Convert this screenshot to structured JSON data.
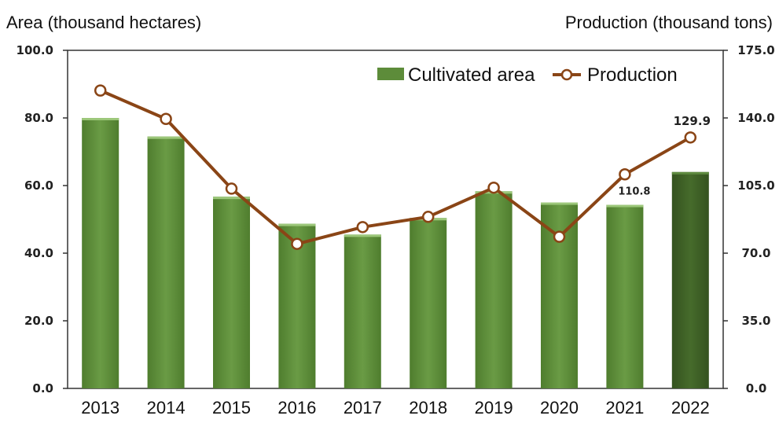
{
  "chart_data": {
    "type": "bar",
    "categories": [
      "2013",
      "2014",
      "2015",
      "2016",
      "2017",
      "2018",
      "2019",
      "2020",
      "2021",
      "2022"
    ],
    "series": [
      {
        "name": "Cultivated area",
        "type": "bar",
        "axis": "left",
        "values": [
          80.0,
          74.5,
          56.7,
          48.7,
          45.5,
          50.4,
          58.3,
          55.0,
          54.3,
          64.0
        ],
        "color": "#5d8c3a",
        "highlight_color": "#3f6027"
      },
      {
        "name": "Production",
        "type": "line",
        "axis": "right",
        "values": [
          154.2,
          139.5,
          103.4,
          74.8,
          83.5,
          88.8,
          103.9,
          78.5,
          110.8,
          129.9
        ],
        "color": "#8a4516"
      }
    ],
    "y_left": {
      "label": "Area (thousand hectares)",
      "min": 0,
      "max": 100,
      "ticks": [
        "0.0",
        "20.0",
        "40.0",
        "60.0",
        "80.0",
        "100.0"
      ]
    },
    "y_right": {
      "label": "Production (thousand tons)",
      "min": 0,
      "max": 175,
      "ticks": [
        "0.0",
        "35.0",
        "70.0",
        "105.0",
        "140.0",
        "175.0"
      ]
    },
    "data_labels": [
      {
        "category": "2021",
        "text": "110.8"
      },
      {
        "category": "2022",
        "text": "129.9"
      }
    ],
    "grid": false,
    "legend": "top-right"
  }
}
